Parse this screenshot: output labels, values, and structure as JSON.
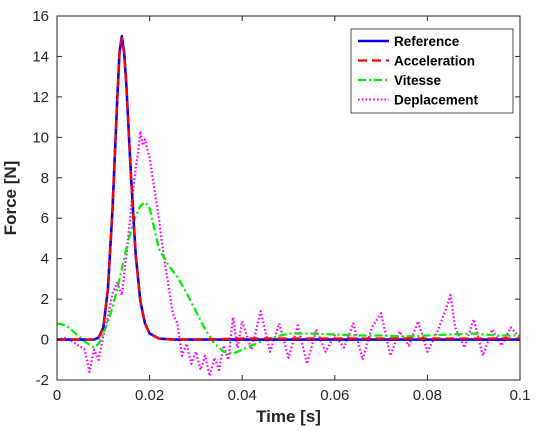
{
  "chart_data": {
    "type": "line",
    "title": "",
    "xlabel": "Time [s]",
    "ylabel": "Force [N]",
    "xlim": [
      0,
      0.1
    ],
    "ylim": [
      -2,
      16
    ],
    "xticks": [
      0,
      0.02,
      0.04,
      0.06,
      0.08,
      0.1
    ],
    "xtick_labels": [
      "0",
      "0.02",
      "0.04",
      "0.06",
      "0.08",
      "0.1"
    ],
    "yticks": [
      -2,
      0,
      2,
      4,
      6,
      8,
      10,
      12,
      14,
      16
    ],
    "ytick_labels": [
      "-2",
      "0",
      "2",
      "4",
      "6",
      "8",
      "10",
      "12",
      "14",
      "16"
    ],
    "grid": false,
    "legend_position": "top-right",
    "series": [
      {
        "name": "Reference",
        "color": "#0000ff",
        "style": "solid",
        "x": [
          0,
          0.008,
          0.009,
          0.01,
          0.011,
          0.012,
          0.013,
          0.0135,
          0.014,
          0.0145,
          0.015,
          0.016,
          0.017,
          0.018,
          0.019,
          0.02,
          0.022,
          0.025,
          0.03,
          0.1
        ],
        "y": [
          0,
          0,
          0.1,
          0.6,
          2.5,
          6.5,
          11.8,
          14.2,
          15.0,
          14.2,
          12.5,
          8.0,
          4.2,
          1.9,
          0.8,
          0.3,
          0.05,
          0,
          0,
          0
        ]
      },
      {
        "name": "Acceleration",
        "color": "#ff0000",
        "style": "dashed",
        "x": [
          0,
          0.008,
          0.009,
          0.01,
          0.011,
          0.012,
          0.013,
          0.0135,
          0.014,
          0.0145,
          0.015,
          0.016,
          0.017,
          0.018,
          0.019,
          0.02,
          0.022,
          0.025,
          0.03,
          0.04,
          0.05,
          0.06,
          0.07,
          0.08,
          0.09,
          0.1
        ],
        "y": [
          0,
          0,
          0.1,
          0.6,
          2.5,
          6.5,
          11.8,
          14.2,
          14.9,
          14.2,
          12.5,
          8.0,
          4.2,
          1.9,
          0.8,
          0.3,
          0.05,
          0,
          0,
          0.05,
          0.05,
          0.05,
          0.05,
          0.05,
          0.05,
          0.05
        ]
      },
      {
        "name": "Vitesse",
        "color": "#00ee00",
        "style": "dashdot",
        "x": [
          0,
          0.002,
          0.004,
          0.006,
          0.008,
          0.009,
          0.01,
          0.011,
          0.012,
          0.013,
          0.014,
          0.015,
          0.016,
          0.017,
          0.018,
          0.019,
          0.02,
          0.022,
          0.024,
          0.026,
          0.028,
          0.03,
          0.032,
          0.034,
          0.036,
          0.038,
          0.04,
          0.042,
          0.045,
          0.05,
          0.055,
          0.06,
          0.065,
          0.07,
          0.075,
          0.08,
          0.085,
          0.09,
          0.095,
          0.1
        ],
        "y": [
          0.8,
          0.7,
          0.3,
          -0.1,
          -0.4,
          -0.2,
          0.3,
          0.9,
          1.6,
          2.5,
          3.5,
          4.5,
          5.4,
          6.1,
          6.6,
          6.8,
          6.5,
          4.5,
          3.7,
          3.1,
          2.3,
          1.4,
          0.5,
          -0.2,
          -0.6,
          -0.7,
          -0.5,
          -0.3,
          0,
          0.3,
          0.3,
          0.25,
          0.2,
          0.2,
          0.15,
          0.2,
          0.25,
          0.3,
          0.2,
          0.2
        ]
      },
      {
        "name": "Deplacement",
        "color": "#ff00ff",
        "style": "dotted",
        "x": [
          0,
          0.002,
          0.004,
          0.006,
          0.007,
          0.008,
          0.009,
          0.01,
          0.011,
          0.012,
          0.013,
          0.014,
          0.015,
          0.016,
          0.017,
          0.0175,
          0.018,
          0.0185,
          0.019,
          0.0195,
          0.02,
          0.021,
          0.022,
          0.023,
          0.024,
          0.025,
          0.026,
          0.027,
          0.028,
          0.029,
          0.03,
          0.031,
          0.032,
          0.033,
          0.034,
          0.035,
          0.036,
          0.037,
          0.038,
          0.039,
          0.04,
          0.042,
          0.044,
          0.046,
          0.048,
          0.05,
          0.052,
          0.054,
          0.056,
          0.058,
          0.06,
          0.062,
          0.064,
          0.066,
          0.068,
          0.07,
          0.072,
          0.074,
          0.076,
          0.078,
          0.08,
          0.082,
          0.084,
          0.085,
          0.086,
          0.088,
          0.09,
          0.092,
          0.094,
          0.096,
          0.098,
          0.1
        ],
        "y": [
          0,
          0.1,
          -0.2,
          -0.5,
          -1.6,
          -0.5,
          -1.0,
          0.2,
          1.1,
          2.3,
          2.8,
          2.2,
          4.2,
          6.5,
          8.5,
          9.2,
          10.3,
          9.6,
          9.9,
          9.4,
          9.0,
          7.5,
          6.0,
          4.2,
          2.8,
          1.3,
          0.8,
          -0.8,
          -0.2,
          -1.2,
          -0.6,
          -1.5,
          -0.8,
          -1.8,
          -0.9,
          -1.5,
          -0.3,
          -1.0,
          1.1,
          -0.4,
          0.9,
          -0.5,
          1.4,
          -0.6,
          0.8,
          -0.9,
          0.7,
          -1.2,
          0.5,
          -0.6,
          0.2,
          -0.4,
          0.8,
          -1.0,
          0.6,
          1.3,
          -0.8,
          0.4,
          -0.3,
          0.9,
          -0.6,
          0.3,
          1.5,
          2.2,
          0.6,
          -0.4,
          1.0,
          -0.8,
          0.5,
          -0.3,
          0.6,
          0.1
        ]
      }
    ]
  }
}
